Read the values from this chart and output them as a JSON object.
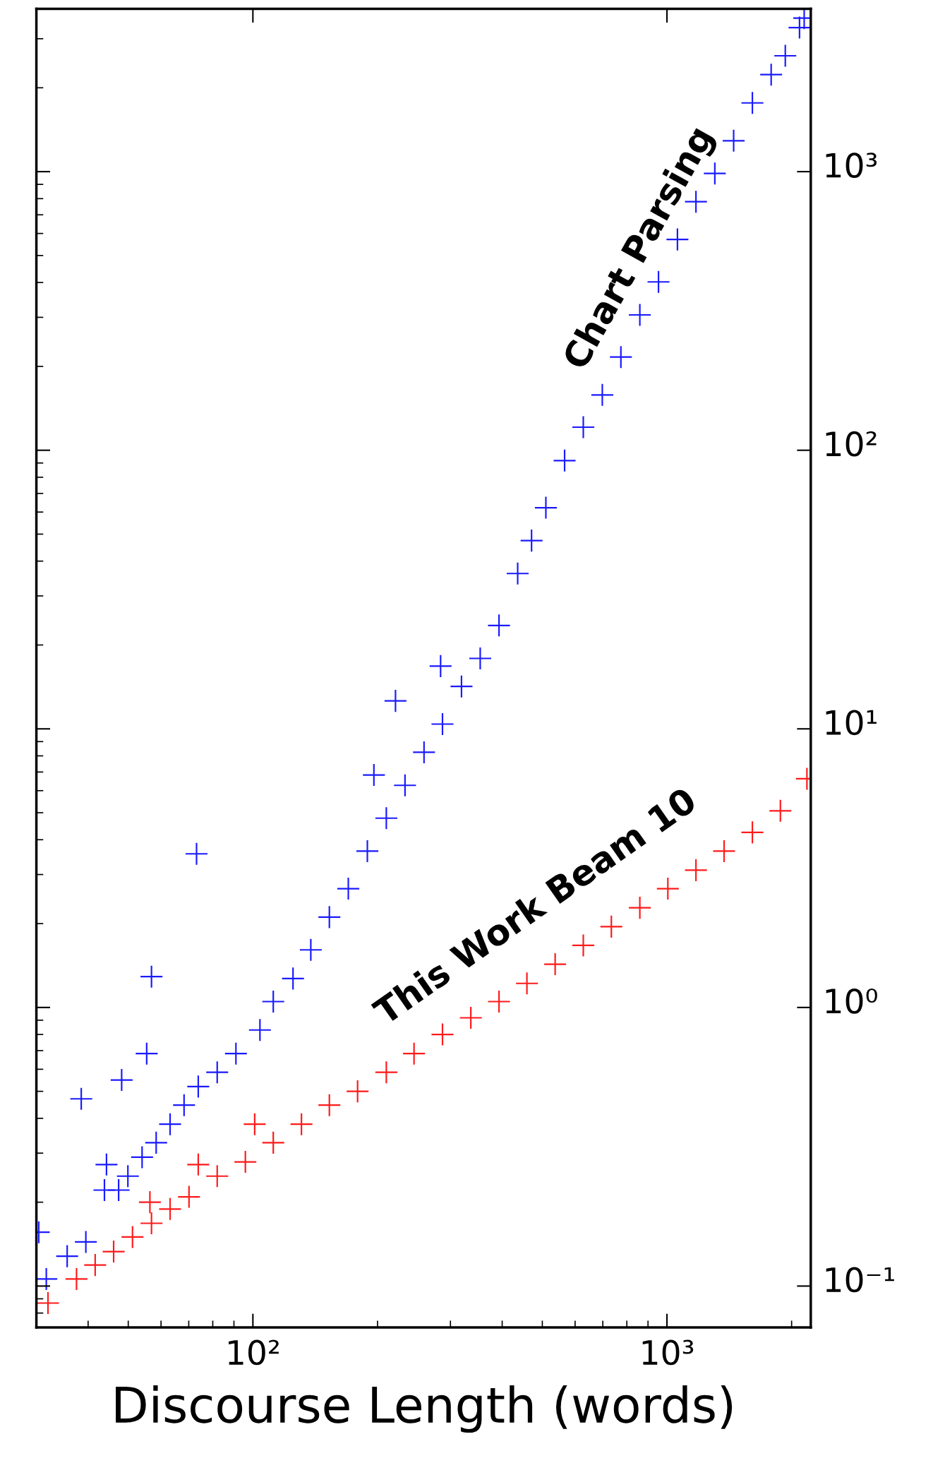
{
  "chart_data": {
    "type": "scatter",
    "xlabel": "Discourse Length (words)",
    "log": "xy",
    "marker": "cross",
    "grid": false,
    "legend": false,
    "xlim": [
      30,
      2225
    ],
    "ylim": [
      0.071,
      3840
    ],
    "xticks": [
      {
        "value": 100,
        "label": "10²"
      },
      {
        "value": 1000,
        "label": "10³"
      }
    ],
    "yticks": [
      {
        "value": 0.1,
        "label": "10⁻¹"
      },
      {
        "value": 1,
        "label": "10⁰"
      },
      {
        "value": 10,
        "label": "10¹"
      },
      {
        "value": 100,
        "label": "10²"
      },
      {
        "value": 1000,
        "label": "10³"
      }
    ],
    "series": [
      {
        "name": "Chart Parsing",
        "color": "#1a1aff",
        "x": [
          30.4,
          31.7,
          35.6,
          39.5,
          43.8,
          47.4,
          49.9,
          54.0,
          58.4,
          63.1,
          68.2,
          73.8,
          82.0,
          91.0,
          104,
          112,
          125,
          138,
          153,
          170,
          189,
          210,
          233,
          259,
          287,
          319,
          354,
          393,
          436,
          471,
          510,
          566,
          628,
          698,
          774,
          860,
          954,
          1060,
          1175,
          1305,
          1449,
          1608,
          1785,
          1931,
          2090,
          2145,
          73.1,
          56.9,
          55.4,
          48.2,
          38.5,
          44.3,
          221,
          284,
          196
        ],
        "values": [
          0.156,
          0.106,
          0.128,
          0.144,
          0.221,
          0.221,
          0.248,
          0.29,
          0.327,
          0.381,
          0.446,
          0.52,
          0.585,
          0.683,
          0.83,
          1.05,
          1.27,
          1.61,
          2.11,
          2.67,
          3.64,
          4.78,
          6.27,
          8.24,
          10.4,
          14.2,
          17.9,
          23.5,
          36.1,
          47.4,
          62.2,
          91.8,
          121,
          158,
          216,
          306,
          402,
          571,
          780,
          985,
          1291,
          1765,
          2230,
          2606,
          3289,
          3556,
          3.56,
          1.29,
          0.683,
          0.549,
          0.47,
          0.273,
          12.6,
          16.8,
          6.83
        ]
      },
      {
        "name": "This Work Beam 10",
        "color": "#ff1a1a",
        "x": [
          32.0,
          37.5,
          41.6,
          46.1,
          51.2,
          56.9,
          63.1,
          70.1,
          82.0,
          95.9,
          112,
          131,
          153,
          179,
          210,
          245,
          287,
          336,
          393,
          459,
          537,
          628,
          734,
          860,
          1005,
          1175,
          1374,
          1608,
          1879,
          2178,
          73.8,
          101,
          56.4
        ],
        "values": [
          0.0869,
          0.106,
          0.119,
          0.133,
          0.15,
          0.168,
          0.189,
          0.209,
          0.248,
          0.279,
          0.327,
          0.381,
          0.446,
          0.5,
          0.585,
          0.683,
          0.8,
          0.918,
          1.05,
          1.22,
          1.43,
          1.67,
          1.95,
          2.28,
          2.67,
          3.11,
          3.64,
          4.25,
          5.08,
          6.62,
          0.273,
          0.381,
          0.2
        ]
      }
    ]
  }
}
